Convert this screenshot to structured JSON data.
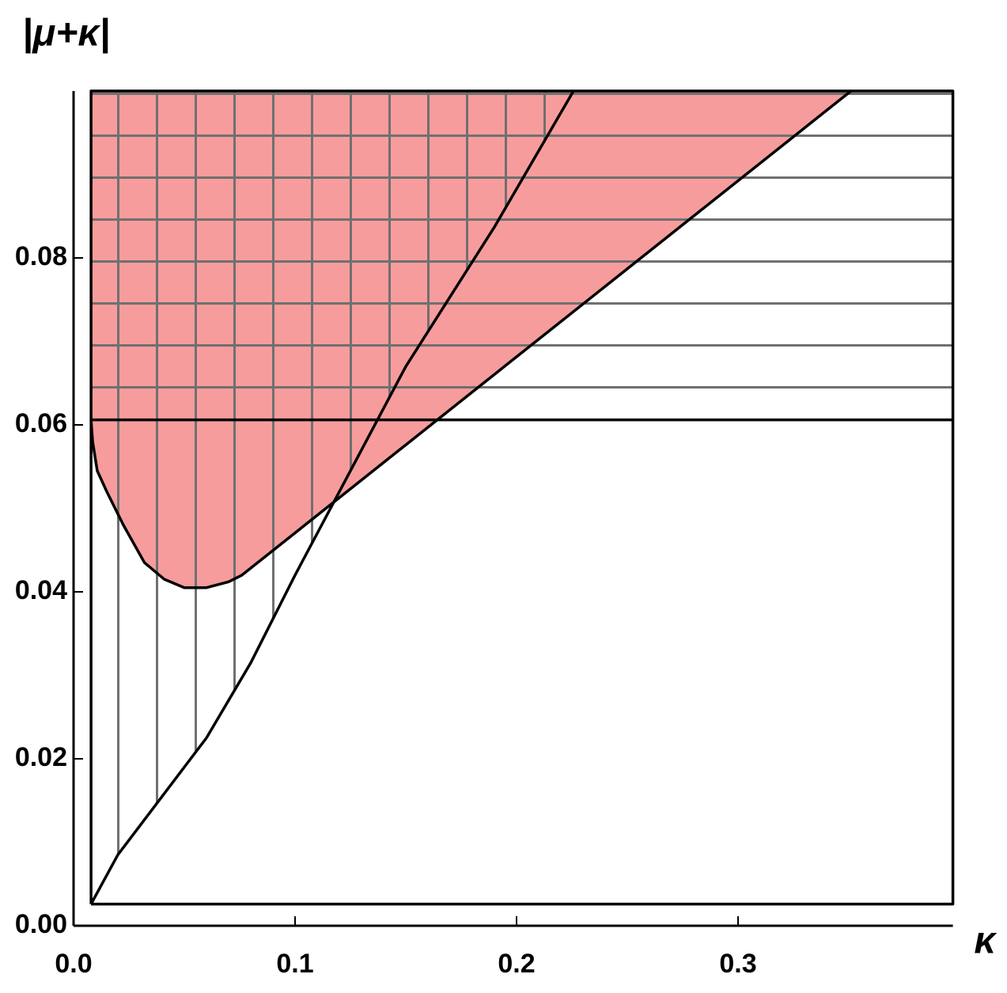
{
  "chart_data": {
    "type": "region",
    "ylabel": "|μ+κ|",
    "xlabel": "κ",
    "xlim": [
      0,
      0.397
    ],
    "ylim": [
      0,
      0.1
    ],
    "xticks": [
      {
        "value": 0,
        "label": "0.0"
      },
      0.1,
      0.2,
      0.3
    ],
    "yticks": [
      {
        "value": 0,
        "label": "0.00"
      },
      0.02,
      0.04,
      0.06,
      0.08
    ],
    "regions": [
      {
        "color": "#f79c9c",
        "fill": "solid",
        "x": [
          0.0079,
          0.0079,
          0.0086,
          0.0107,
          0.015,
          0.0225,
          0.032,
          0.041,
          0.05,
          0.06,
          0.07,
          0.076,
          0.351
        ],
        "values": [
          0.1,
          0.0606,
          0.058,
          0.0545,
          0.052,
          0.048,
          0.0435,
          0.0415,
          0.0405,
          0.0405,
          0.0412,
          0.042,
          0.1
        ]
      },
      {
        "color": "#707070",
        "fill": "vertical",
        "x": [
          0.0079,
          0.2257,
          0.19,
          0.15,
          0.124,
          0.1,
          0.08,
          0.06,
          0.04,
          0.02,
          0.0079
        ],
        "values": [
          0.1,
          0.1,
          0.0837,
          0.067,
          0.054,
          0.042,
          0.0315,
          0.0225,
          0.0155,
          0.0085,
          0.0026
        ]
      },
      {
        "color": "#707070",
        "fill": "horizontal",
        "x": [
          0.0079,
          0.397,
          0.397,
          0.0079
        ],
        "values": [
          0.1,
          0.1,
          0.0606,
          0.0606
        ]
      }
    ],
    "series": [
      {
        "color": "#000000",
        "x": [
          0.0079,
          0.397,
          0.397,
          0.0079,
          0.0079
        ],
        "values": [
          0.0026,
          0.0026,
          0.1,
          0.1,
          0.0026
        ]
      },
      {
        "color": "#000000",
        "x": [
          0.0079,
          0.397
        ],
        "values": [
          0.0606,
          0.0606
        ]
      },
      {
        "color": "#000000",
        "x": [
          0.0079,
          0.02,
          0.04,
          0.06,
          0.08,
          0.1,
          0.124,
          0.15,
          0.19,
          0.2257
        ],
        "values": [
          0.0026,
          0.0085,
          0.0155,
          0.0225,
          0.0315,
          0.042,
          0.054,
          0.067,
          0.0837,
          0.1
        ]
      },
      {
        "color": "#000000",
        "x": [
          0.0079,
          0.0086,
          0.0107,
          0.015,
          0.0225,
          0.032,
          0.041,
          0.05,
          0.06,
          0.07,
          0.076,
          0.351
        ],
        "values": [
          0.0606,
          0.058,
          0.0545,
          0.052,
          0.048,
          0.0435,
          0.0415,
          0.0405,
          0.0405,
          0.0412,
          0.042,
          0.1
        ]
      }
    ]
  }
}
